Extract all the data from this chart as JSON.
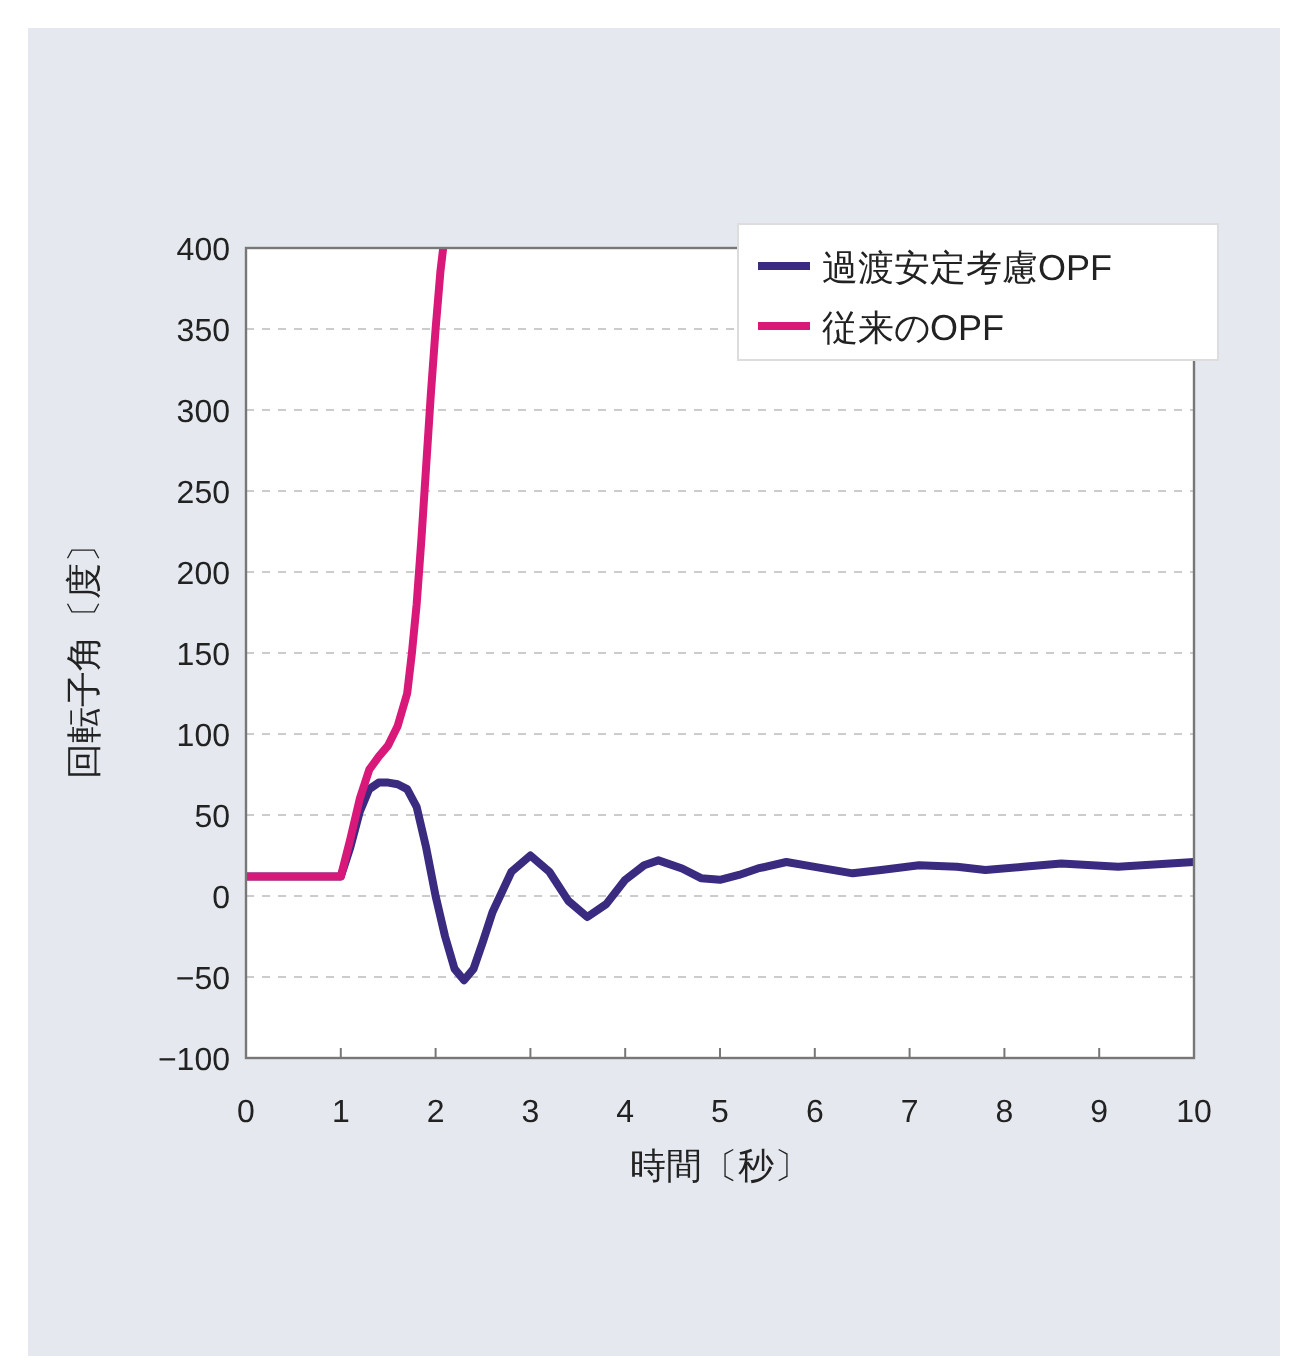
{
  "chart_data": {
    "type": "line",
    "xlabel": "時間〔秒〕",
    "ylabel": "回転子角〔度〕",
    "xlim": [
      0,
      10
    ],
    "ylim": [
      -100,
      400
    ],
    "xticks": [
      0,
      1,
      2,
      3,
      4,
      5,
      6,
      7,
      8,
      9,
      10
    ],
    "yticks": [
      -100,
      -50,
      0,
      50,
      100,
      150,
      200,
      250,
      300,
      350,
      400
    ],
    "grid": "y",
    "legend": "top right",
    "line_style": "solid",
    "marker": "none",
    "series": [
      {
        "name": "過渡安定考慮OPF",
        "color": "#3a2a80",
        "x": [
          0,
          1,
          1.1,
          1.2,
          1.3,
          1.4,
          1.5,
          1.6,
          1.7,
          1.8,
          1.9,
          2.0,
          2.1,
          2.2,
          2.3,
          2.4,
          2.5,
          2.6,
          2.8,
          3.0,
          3.2,
          3.4,
          3.6,
          3.8,
          4.0,
          4.2,
          4.35,
          4.6,
          4.8,
          5.0,
          5.2,
          5.4,
          5.7,
          6.0,
          6.4,
          6.7,
          7.1,
          7.5,
          7.8,
          8.2,
          8.6,
          9.2,
          10
        ],
        "values": [
          12,
          12,
          30,
          52,
          66,
          70,
          70,
          69,
          66,
          55,
          30,
          0,
          -25,
          -45,
          -52,
          -45,
          -28,
          -10,
          15,
          25,
          15,
          -3,
          -13,
          -5,
          10,
          19,
          22,
          17,
          11,
          10,
          13,
          17,
          21,
          18,
          14,
          16,
          19,
          18,
          16,
          18,
          20,
          18,
          21
        ]
      },
      {
        "name": "従来のOPF",
        "color": "#d8197a",
        "x": [
          0,
          1,
          1.1,
          1.2,
          1.3,
          1.4,
          1.5,
          1.6,
          1.7,
          1.75,
          1.8,
          1.85,
          1.9,
          1.95,
          2.0,
          2.05,
          2.08
        ],
        "values": [
          12,
          12,
          35,
          60,
          78,
          86,
          93,
          105,
          125,
          150,
          180,
          220,
          265,
          310,
          350,
          385,
          400
        ]
      }
    ]
  }
}
